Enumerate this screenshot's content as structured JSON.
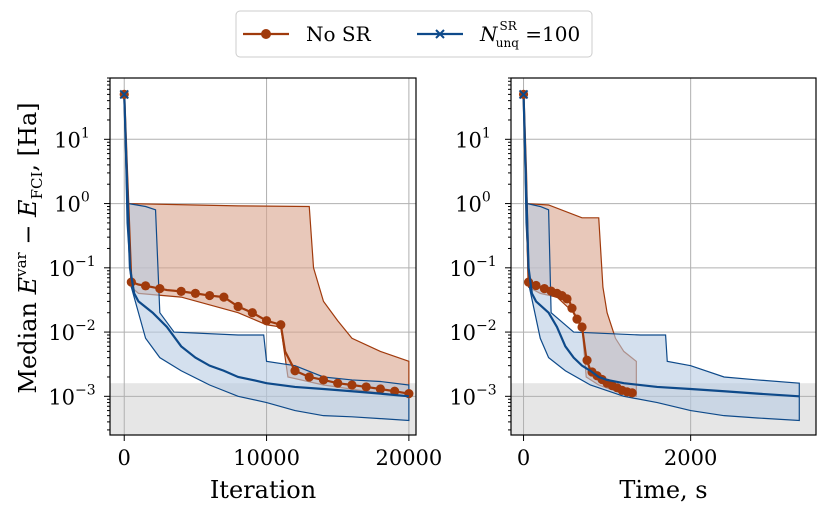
{
  "legend": {
    "items": [
      {
        "label": "No SR",
        "color": "#a03a0c",
        "marker": "circle"
      },
      {
        "label": "N",
        "sup": "SR",
        "sub": "unq",
        "suffix": " =100",
        "color": "#0e4a8a",
        "marker": "x"
      }
    ]
  },
  "ylabel": {
    "prefix": "Median ",
    "E1": "E",
    "sup1": "var",
    "minus": " − ",
    "E2": "E",
    "sub2": "FCI",
    "unit": ", [Ha]"
  },
  "colors": {
    "nosr": "#a03a0c",
    "sr": "#0e4a8a",
    "nosr_fill": "#d9a48c",
    "sr_fill": "#b8cce3",
    "chem_band": "#e6e6e6"
  },
  "chart_data": [
    {
      "type": "line",
      "xlabel": "Iteration",
      "xlim": [
        -1000,
        20500
      ],
      "ylim": [
        0.00025,
        90
      ],
      "yscale": "log",
      "grid": true,
      "xticks": [
        0,
        10000,
        20000
      ],
      "xtick_labels": [
        "0",
        "10000",
        "20000"
      ],
      "yticks": [
        0.001,
        0.01,
        0.1,
        1,
        10
      ],
      "ytick_labels": [
        {
          "base": "10",
          "exp": "−3"
        },
        {
          "base": "10",
          "exp": "−2"
        },
        {
          "base": "10",
          "exp": "−1"
        },
        {
          "base": "10",
          "exp": "0"
        },
        {
          "base": "10",
          "exp": "1"
        }
      ],
      "band": [
        0.00025,
        0.0016
      ],
      "series": [
        {
          "name": "No SR",
          "key": "nosr",
          "median": [
            [
              0,
              50
            ],
            [
              200,
              3
            ],
            [
              500,
              0.06
            ],
            [
              1000,
              0.055
            ],
            [
              2000,
              0.05
            ],
            [
              3000,
              0.045
            ],
            [
              4000,
              0.043
            ],
            [
              5000,
              0.04
            ],
            [
              6000,
              0.037
            ],
            [
              7000,
              0.035
            ],
            [
              8000,
              0.025
            ],
            [
              9000,
              0.02
            ],
            [
              10000,
              0.015
            ],
            [
              11000,
              0.013
            ],
            [
              11300,
              0.005
            ],
            [
              12000,
              0.0025
            ],
            [
              13000,
              0.002
            ],
            [
              14000,
              0.0018
            ],
            [
              15000,
              0.0016
            ],
            [
              16000,
              0.0015
            ],
            [
              17000,
              0.0014
            ],
            [
              18000,
              0.0013
            ],
            [
              19000,
              0.0012
            ],
            [
              20000,
              0.0011
            ]
          ],
          "upper": [
            [
              0,
              50
            ],
            [
              200,
              1.0
            ],
            [
              5000,
              0.95
            ],
            [
              8000,
              0.92
            ],
            [
              13000,
              0.9
            ],
            [
              13300,
              0.1
            ],
            [
              14000,
              0.03
            ],
            [
              15000,
              0.015
            ],
            [
              16000,
              0.008
            ],
            [
              18000,
              0.005
            ],
            [
              20000,
              0.0035
            ]
          ],
          "lower": [
            [
              0,
              50
            ],
            [
              200,
              0.8
            ],
            [
              500,
              0.05
            ],
            [
              1000,
              0.04
            ],
            [
              4000,
              0.035
            ],
            [
              8000,
              0.02
            ],
            [
              10000,
              0.013
            ],
            [
              11000,
              0.012
            ],
            [
              11500,
              0.002
            ],
            [
              14000,
              0.0015
            ],
            [
              17000,
              0.0012
            ],
            [
              20000,
              0.001
            ]
          ],
          "markers_x": [
            500,
            1500,
            2500,
            4000,
            5000,
            6000,
            7000,
            8000,
            9000,
            10000,
            11000,
            12000,
            13000,
            14000,
            15000,
            16000,
            17000,
            18000,
            19000,
            20000
          ]
        },
        {
          "name": "N_unq^SR =100",
          "key": "sr",
          "median": [
            [
              0,
              50
            ],
            [
              200,
              2
            ],
            [
              400,
              0.1
            ],
            [
              700,
              0.04
            ],
            [
              1000,
              0.03
            ],
            [
              2000,
              0.02
            ],
            [
              3000,
              0.012
            ],
            [
              4000,
              0.006
            ],
            [
              5000,
              0.004
            ],
            [
              6000,
              0.003
            ],
            [
              7000,
              0.0025
            ],
            [
              8000,
              0.002
            ],
            [
              9000,
              0.0018
            ],
            [
              10000,
              0.0016
            ],
            [
              12000,
              0.0014
            ],
            [
              14000,
              0.0013
            ],
            [
              16000,
              0.0012
            ],
            [
              18000,
              0.0011
            ],
            [
              20000,
              0.001
            ]
          ],
          "upper": [
            [
              0,
              50
            ],
            [
              300,
              1.0
            ],
            [
              1500,
              0.9
            ],
            [
              2200,
              0.8
            ],
            [
              2500,
              0.02
            ],
            [
              3500,
              0.01
            ],
            [
              8000,
              0.009
            ],
            [
              9800,
              0.009
            ],
            [
              10000,
              0.0035
            ],
            [
              12000,
              0.003
            ],
            [
              14000,
              0.002
            ],
            [
              16000,
              0.0018
            ],
            [
              18000,
              0.0017
            ],
            [
              20000,
              0.0015
            ]
          ],
          "lower": [
            [
              0,
              50
            ],
            [
              200,
              0.5
            ],
            [
              500,
              0.05
            ],
            [
              1500,
              0.008
            ],
            [
              2500,
              0.004
            ],
            [
              4000,
              0.0025
            ],
            [
              6000,
              0.0015
            ],
            [
              8000,
              0.001
            ],
            [
              10000,
              0.0008
            ],
            [
              12000,
              0.0006
            ],
            [
              14000,
              0.0005
            ],
            [
              16000,
              0.00048
            ],
            [
              18000,
              0.00045
            ],
            [
              20000,
              0.00042
            ]
          ]
        }
      ]
    },
    {
      "type": "line",
      "xlabel": "Time, s",
      "xlim": [
        -150,
        3500
      ],
      "ylim": [
        0.00025,
        90
      ],
      "yscale": "log",
      "grid": true,
      "xticks": [
        0,
        2000
      ],
      "xtick_labels": [
        "0",
        "2000"
      ],
      "yticks": [
        0.001,
        0.01,
        0.1,
        1,
        10
      ],
      "ytick_labels": [
        {
          "base": "10",
          "exp": "−3"
        },
        {
          "base": "10",
          "exp": "−2"
        },
        {
          "base": "10",
          "exp": "−1"
        },
        {
          "base": "10",
          "exp": "0"
        },
        {
          "base": "10",
          "exp": "1"
        }
      ],
      "band": [
        0.00025,
        0.0016
      ],
      "series": [
        {
          "name": "No SR",
          "key": "nosr",
          "median": [
            [
              0,
              50
            ],
            [
              30,
              3
            ],
            [
              60,
              0.06
            ],
            [
              120,
              0.055
            ],
            [
              200,
              0.05
            ],
            [
              300,
              0.045
            ],
            [
              400,
              0.04
            ],
            [
              500,
              0.035
            ],
            [
              550,
              0.03
            ],
            [
              600,
              0.02
            ],
            [
              650,
              0.015
            ],
            [
              700,
              0.012
            ],
            [
              750,
              0.004
            ],
            [
              800,
              0.0025
            ],
            [
              900,
              0.002
            ],
            [
              1000,
              0.0016
            ],
            [
              1100,
              0.0014
            ],
            [
              1200,
              0.0012
            ],
            [
              1350,
              0.0011
            ]
          ],
          "upper": [
            [
              0,
              50
            ],
            [
              30,
              1.0
            ],
            [
              300,
              0.95
            ],
            [
              700,
              0.6
            ],
            [
              900,
              0.6
            ],
            [
              950,
              0.05
            ],
            [
              1000,
              0.02
            ],
            [
              1100,
              0.008
            ],
            [
              1200,
              0.005
            ],
            [
              1350,
              0.0035
            ]
          ],
          "lower": [
            [
              0,
              50
            ],
            [
              30,
              0.8
            ],
            [
              60,
              0.05
            ],
            [
              200,
              0.04
            ],
            [
              400,
              0.035
            ],
            [
              600,
              0.02
            ],
            [
              700,
              0.012
            ],
            [
              750,
              0.002
            ],
            [
              900,
              0.0015
            ],
            [
              1100,
              0.0012
            ],
            [
              1350,
              0.001
            ]
          ],
          "markers_x": [
            60,
            150,
            250,
            330,
            400,
            460,
            520,
            580,
            640,
            700,
            760,
            820,
            880,
            940,
            1000,
            1060,
            1120,
            1180,
            1240,
            1300
          ]
        },
        {
          "name": "N_unq^SR =100",
          "key": "sr",
          "median": [
            [
              0,
              50
            ],
            [
              30,
              2
            ],
            [
              60,
              0.1
            ],
            [
              100,
              0.04
            ],
            [
              150,
              0.03
            ],
            [
              300,
              0.02
            ],
            [
              400,
              0.012
            ],
            [
              500,
              0.006
            ],
            [
              600,
              0.004
            ],
            [
              700,
              0.003
            ],
            [
              800,
              0.0025
            ],
            [
              900,
              0.002
            ],
            [
              1000,
              0.0018
            ],
            [
              1200,
              0.0016
            ],
            [
              1600,
              0.0014
            ],
            [
              2000,
              0.0013
            ],
            [
              2400,
              0.0012
            ],
            [
              2800,
              0.0011
            ],
            [
              3300,
              0.001
            ]
          ],
          "upper": [
            [
              0,
              50
            ],
            [
              40,
              1.0
            ],
            [
              200,
              0.9
            ],
            [
              300,
              0.8
            ],
            [
              330,
              0.02
            ],
            [
              600,
              0.01
            ],
            [
              1400,
              0.009
            ],
            [
              1700,
              0.009
            ],
            [
              1720,
              0.0035
            ],
            [
              2000,
              0.003
            ],
            [
              2400,
              0.002
            ],
            [
              2800,
              0.0018
            ],
            [
              3300,
              0.0016
            ]
          ],
          "lower": [
            [
              0,
              50
            ],
            [
              30,
              0.5
            ],
            [
              70,
              0.05
            ],
            [
              200,
              0.008
            ],
            [
              300,
              0.004
            ],
            [
              500,
              0.0025
            ],
            [
              800,
              0.0015
            ],
            [
              1200,
              0.001
            ],
            [
              1600,
              0.0008
            ],
            [
              2000,
              0.0006
            ],
            [
              2400,
              0.0005
            ],
            [
              2800,
              0.00046
            ],
            [
              3300,
              0.00042
            ]
          ]
        }
      ]
    }
  ]
}
